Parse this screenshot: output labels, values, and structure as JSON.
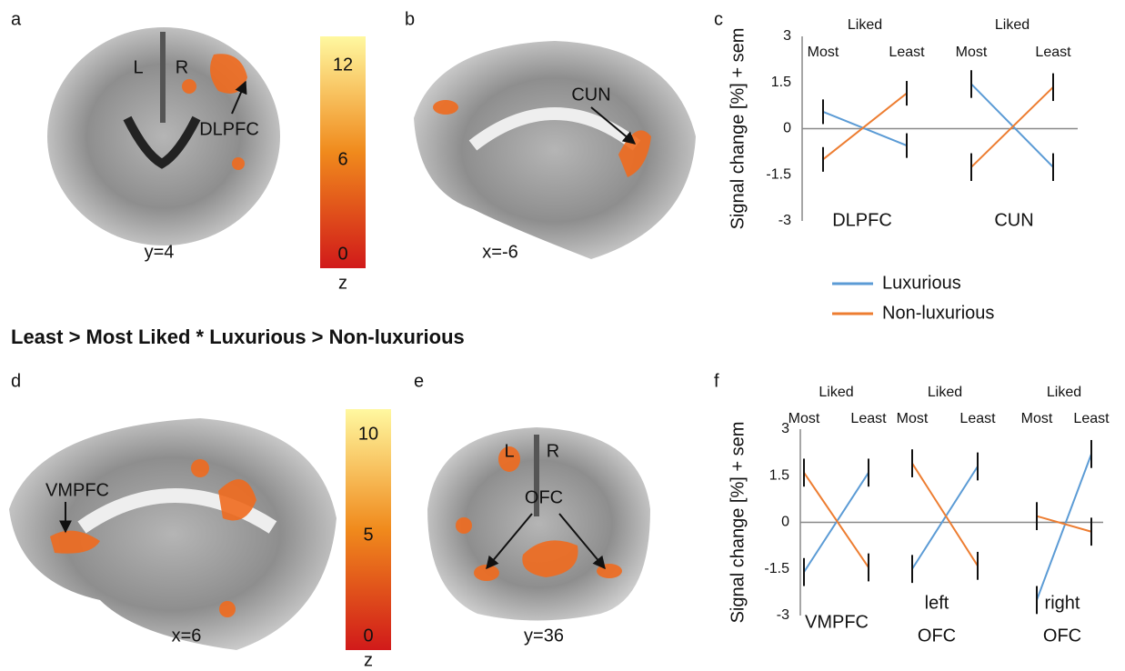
{
  "figure": {
    "panels": [
      "a",
      "b",
      "c",
      "d",
      "e",
      "f"
    ],
    "heading": "Least > Most Liked * Luxurious > Non-luxurious",
    "a": {
      "left": "L",
      "right": "R",
      "region": "DLPFC",
      "slice": "y=4"
    },
    "b": {
      "region": "CUN",
      "slice": "x=-6"
    },
    "d": {
      "region": "VMPFC",
      "slice": "x=6"
    },
    "e": {
      "left": "L",
      "right": "R",
      "region": "OFC",
      "slice": "y=36"
    },
    "colorbars": [
      {
        "lim": [
          0,
          12
        ],
        "ticks": [
          0,
          6,
          12
        ],
        "label": "z"
      },
      {
        "lim": [
          0,
          10
        ],
        "ticks": [
          0,
          5,
          10
        ],
        "label": "z"
      }
    ]
  },
  "chart_data": [
    {
      "type": "line",
      "ylabel": "Signal change [%] + sem",
      "ylim": [
        -3,
        3
      ],
      "yticks": [
        -3,
        -1.5,
        0,
        1.5,
        3
      ],
      "group_headers": [
        "Liked",
        "Liked"
      ],
      "groups": [
        [
          "DLPFC"
        ],
        [
          "CUN"
        ]
      ],
      "categories": [
        "Most",
        "Least",
        "Most",
        "Least"
      ],
      "series": [
        {
          "name": "Luxurious",
          "color": "#5b9bd5",
          "values": [
            0.55,
            -0.55,
            1.45,
            -1.25
          ],
          "errors": [
            0.4,
            0.4,
            0.45,
            0.45
          ]
        },
        {
          "name": "Non-luxurious",
          "color": "#ed7d31",
          "values": [
            -1.0,
            1.15,
            -1.25,
            1.35
          ],
          "errors": [
            0.4,
            0.4,
            0.45,
            0.45
          ]
        }
      ],
      "legend": true
    },
    {
      "type": "line",
      "ylabel": "Signal change [%] + sem",
      "ylim": [
        -3,
        3
      ],
      "yticks": [
        -3,
        -1.5,
        0,
        1.5,
        3
      ],
      "group_headers": [
        "Liked",
        "Liked",
        "Liked"
      ],
      "groups": [
        [
          "VMPFC"
        ],
        [
          "left",
          "OFC"
        ],
        [
          "right",
          "OFC"
        ]
      ],
      "categories": [
        "Most",
        "Least",
        "Most",
        "Least",
        "Most",
        "Least"
      ],
      "series": [
        {
          "color": "#5b9bd5",
          "values": [
            -1.6,
            1.6,
            -1.5,
            1.8,
            -2.5,
            2.2
          ],
          "errors": [
            0.45,
            0.45,
            0.45,
            0.45,
            0.45,
            0.45
          ]
        },
        {
          "color": "#ed7d31",
          "values": [
            1.6,
            -1.45,
            1.9,
            -1.4,
            0.2,
            -0.3
          ],
          "errors": [
            0.45,
            0.45,
            0.45,
            0.45,
            0.45,
            0.45
          ]
        }
      ],
      "legend": false
    }
  ]
}
